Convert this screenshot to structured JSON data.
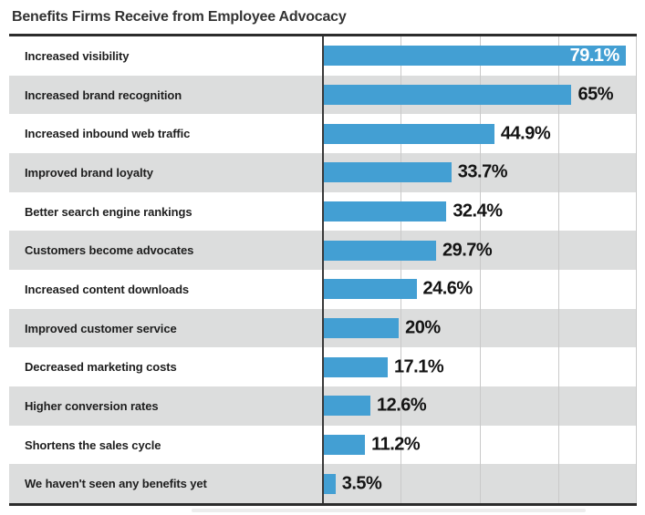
{
  "title": "Benefits Firms Receive from Employee Advocacy",
  "chart_data": {
    "type": "bar",
    "orientation": "horizontal",
    "title": "Benefits Firms Receive from Employee Advocacy",
    "xlabel": "",
    "ylabel": "",
    "xlim": [
      0,
      82
    ],
    "grid": "vertical gridlines at 4 equal divisions of plot area",
    "legend": "none",
    "categories": [
      "Increased visibility",
      "Increased brand recognition",
      "Increased inbound web traffic",
      "Improved brand loyalty",
      "Better search engine rankings",
      "Customers become advocates",
      "Increased content downloads",
      "Improved customer service",
      "Decreased marketing costs",
      "Higher conversion rates",
      "Shortens the sales cycle",
      "We haven't seen any benefits yet"
    ],
    "values": [
      79.1,
      65,
      44.9,
      33.7,
      32.4,
      29.7,
      24.6,
      20,
      17.1,
      12.6,
      11.2,
      3.5
    ],
    "value_labels": [
      "79.1%",
      "65%",
      "44.9%",
      "33.7%",
      "32.4%",
      "29.7%",
      "24.6%",
      "20%",
      "17.1%",
      "12.6%",
      "11.2%",
      "3.5%"
    ],
    "value_label_inside_bar": [
      true,
      false,
      false,
      false,
      false,
      false,
      false,
      false,
      false,
      false,
      false,
      false
    ]
  },
  "colors": {
    "bar": "#439fd3",
    "row_stripe": "#dcdddd",
    "row_plain": "#ffffff",
    "axis_line": "#3a3a3a",
    "gridline": "#c9c9c9",
    "border": "#2c2c2c",
    "title_text": "#333333",
    "category_text": "#1e1e1e",
    "value_text": "#141414",
    "value_text_inside": "#ffffff"
  }
}
